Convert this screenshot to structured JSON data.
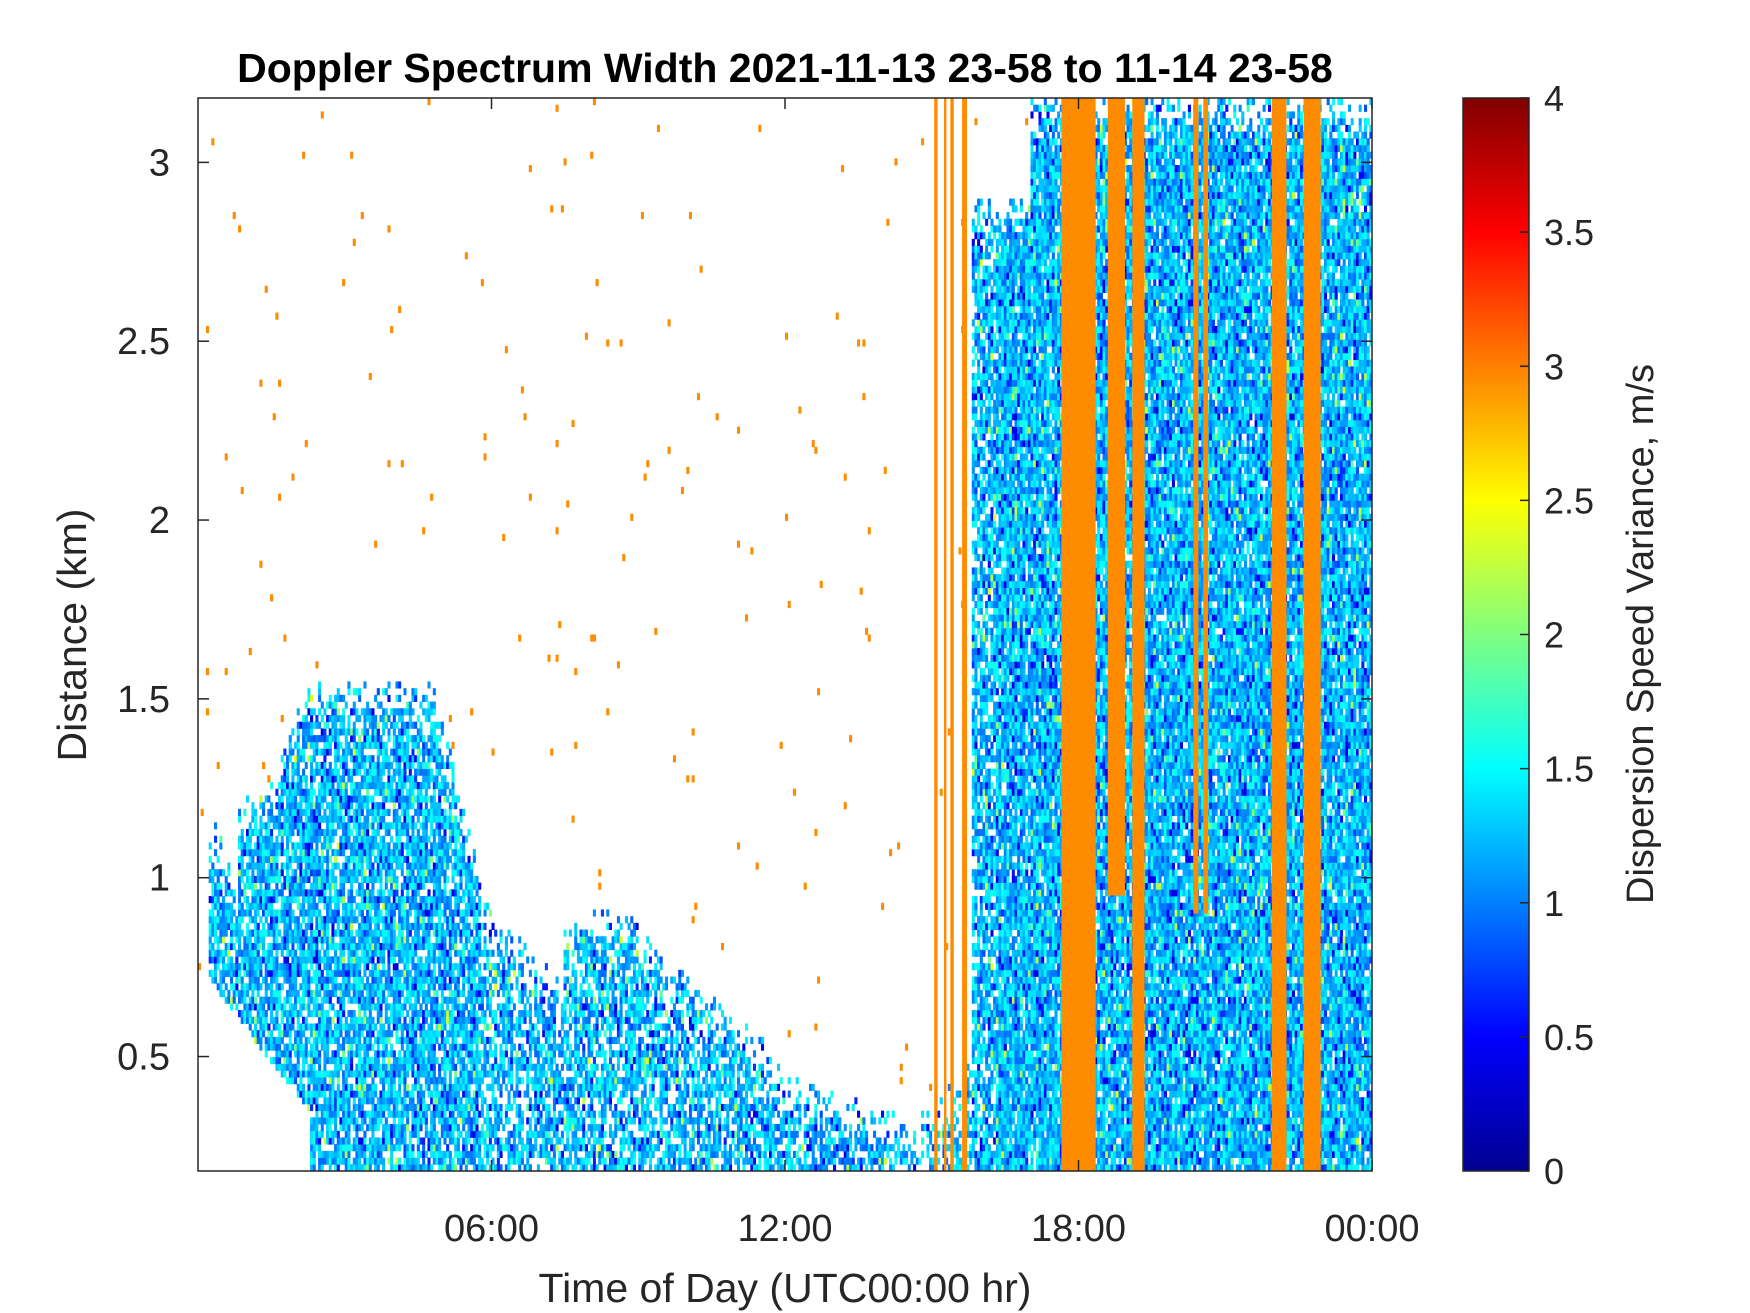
{
  "chart_data": {
    "type": "heatmap",
    "title": "Doppler Spectrum Width 2021-11-13 23-58 to 11-14 23-58",
    "xlabel": "Time of Day (UTC00:00 hr)",
    "ylabel": "Distance (km)",
    "xlim_hours": [
      0,
      24
    ],
    "ylim": [
      0.18,
      3.18
    ],
    "x_ticks": [
      {
        "value": 6,
        "label": "06:00"
      },
      {
        "value": 12,
        "label": "12:00"
      },
      {
        "value": 18,
        "label": "18:00"
      },
      {
        "value": 24,
        "label": "00:00"
      }
    ],
    "y_ticks": [
      {
        "value": 0.5,
        "label": "0.5"
      },
      {
        "value": 1,
        "label": "1"
      },
      {
        "value": 1.5,
        "label": "1.5"
      },
      {
        "value": 2,
        "label": "2"
      },
      {
        "value": 2.5,
        "label": "2.5"
      },
      {
        "value": 3,
        "label": "3"
      }
    ],
    "colorbar": {
      "label": "Dispersion Speed Variance, m/s",
      "colormap": "jet",
      "range": [
        0,
        4
      ],
      "ticks": [
        {
          "value": 0,
          "label": "0"
        },
        {
          "value": 0.5,
          "label": "0.5"
        },
        {
          "value": 1,
          "label": "1"
        },
        {
          "value": 1.5,
          "label": "1.5"
        },
        {
          "value": 2,
          "label": "2"
        },
        {
          "value": 2.5,
          "label": "2.5"
        },
        {
          "value": 3,
          "label": "3"
        },
        {
          "value": 3.5,
          "label": "3.5"
        },
        {
          "value": 4,
          "label": "4"
        }
      ]
    },
    "grid": false,
    "regions": [
      {
        "desc": "morning boundary layer",
        "t_start": 0.2,
        "t_end": 5.8,
        "z_max_km": 1.6,
        "typical_value": 1.3
      },
      {
        "desc": "descending layer",
        "t_start": 5.8,
        "t_end": 14.5,
        "z_top_start_km": 0.9,
        "z_top_end_km": 0.3,
        "typical_value": 1.3
      },
      {
        "desc": "afternoon convective layer",
        "t_start": 15.8,
        "t_end": 24,
        "z_max_km": 3.18,
        "typical_value": 1.3
      },
      {
        "desc": "saturated profiles",
        "t_start": 15.0,
        "t_end": 23.0,
        "typical_value": 2.95
      }
    ],
    "saturated_columns": [
      {
        "t_start": 15.05,
        "t_end": 15.12,
        "z_bottom": 0.18,
        "z_top": 3.18
      },
      {
        "t_start": 15.25,
        "t_end": 15.3,
        "z_bottom": 0.18,
        "z_top": 3.18
      },
      {
        "t_start": 15.38,
        "t_end": 15.45,
        "z_bottom": 0.18,
        "z_top": 3.18
      },
      {
        "t_start": 15.62,
        "t_end": 15.72,
        "z_bottom": 0.18,
        "z_top": 3.18
      },
      {
        "t_start": 17.65,
        "t_end": 18.1,
        "z_bottom": 0.18,
        "z_top": 3.18
      },
      {
        "t_start": 18.05,
        "t_end": 18.35,
        "z_bottom": 0.18,
        "z_top": 3.18
      },
      {
        "t_start": 18.6,
        "t_end": 18.95,
        "z_bottom": 0.95,
        "z_top": 3.18
      },
      {
        "t_start": 19.1,
        "t_end": 19.35,
        "z_bottom": 0.18,
        "z_top": 3.18
      },
      {
        "t_start": 20.35,
        "t_end": 20.45,
        "z_bottom": 0.9,
        "z_top": 3.18
      },
      {
        "t_start": 20.55,
        "t_end": 20.65,
        "z_bottom": 0.9,
        "z_top": 3.18
      },
      {
        "t_start": 21.95,
        "t_end": 22.25,
        "z_bottom": 0.18,
        "z_top": 3.18
      },
      {
        "t_start": 22.6,
        "t_end": 22.95,
        "z_bottom": 0.18,
        "z_top": 3.18
      }
    ]
  }
}
